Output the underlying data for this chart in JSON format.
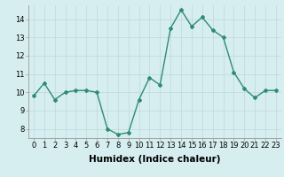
{
  "x": [
    0,
    1,
    2,
    3,
    4,
    5,
    6,
    7,
    8,
    9,
    10,
    11,
    12,
    13,
    14,
    15,
    16,
    17,
    18,
    19,
    20,
    21,
    22,
    23
  ],
  "y": [
    9.8,
    10.5,
    9.6,
    10.0,
    10.1,
    10.1,
    10.0,
    8.0,
    7.7,
    7.8,
    9.6,
    10.8,
    10.4,
    13.5,
    14.5,
    13.6,
    14.1,
    13.4,
    13.0,
    11.1,
    10.2,
    9.7,
    10.1,
    10.1
  ],
  "line_color": "#2e8b74",
  "marker": "D",
  "marker_size": 2.0,
  "bg_color": "#d6eef0",
  "grid_color": "#c0d8dc",
  "xlabel": "Humidex (Indice chaleur)",
  "xlabel_fontsize": 7.5,
  "xlim": [
    -0.5,
    23.5
  ],
  "ylim": [
    7.5,
    14.75
  ],
  "yticks": [
    8,
    9,
    10,
    11,
    12,
    13,
    14
  ],
  "xticks": [
    0,
    1,
    2,
    3,
    4,
    5,
    6,
    7,
    8,
    9,
    10,
    11,
    12,
    13,
    14,
    15,
    16,
    17,
    18,
    19,
    20,
    21,
    22,
    23
  ],
  "tick_fontsize": 6.0,
  "line_width": 1.0
}
